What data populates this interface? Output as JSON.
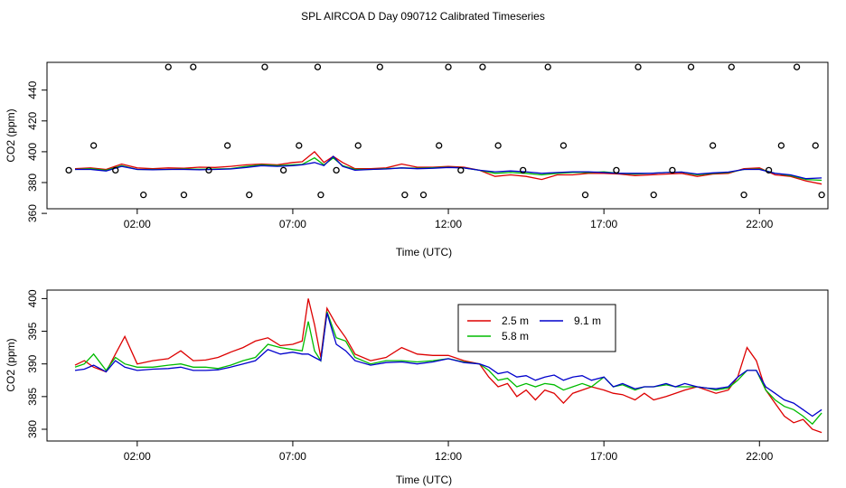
{
  "title": "SPL AIRCOA D  Day 090712  Calibrated Timeseries",
  "colors": {
    "s25": "#dd0000",
    "s58": "#00bb00",
    "s91": "#0000cc",
    "axis": "#000000"
  },
  "chart_data": [
    {
      "type": "line",
      "title": "SPL AIRCOA D  Day 090712  Calibrated Timeseries",
      "xlabel": "Time (UTC)",
      "ylabel": "CO2 (ppm)",
      "xlim": [
        -0.9,
        24.2
      ],
      "ylim": [
        363,
        458
      ],
      "x_tick_labels": [
        {
          "v": 2,
          "label": "02:00"
        },
        {
          "v": 7,
          "label": "07:00"
        },
        {
          "v": 12,
          "label": "12:00"
        },
        {
          "v": 17,
          "label": "17:00"
        },
        {
          "v": 22,
          "label": "22:00"
        }
      ],
      "y_tick_labels": [
        {
          "v": 360,
          "label": "360"
        },
        {
          "v": 380,
          "label": "380"
        },
        {
          "v": 400,
          "label": "400"
        },
        {
          "v": 420,
          "label": "420"
        },
        {
          "v": 440,
          "label": "440"
        }
      ],
      "series": [
        {
          "name": "2.5 m",
          "color": "#dd0000",
          "x": [
            0,
            0.5,
            1,
            1.5,
            2,
            2.5,
            3,
            3.5,
            4,
            4.5,
            5,
            5.5,
            6,
            6.5,
            7,
            7.3,
            7.7,
            8,
            8.3,
            8.6,
            9,
            9.5,
            10,
            10.5,
            11,
            11.5,
            12,
            12.5,
            13,
            13.5,
            14,
            14.5,
            15,
            15.5,
            16,
            16.5,
            17,
            17.5,
            18,
            18.5,
            19,
            19.5,
            20,
            20.5,
            21,
            21.5,
            22,
            22.5,
            23,
            23.5,
            24
          ],
          "values": [
            389,
            389.5,
            388.5,
            392,
            389.5,
            389,
            389.5,
            389.3,
            390,
            389.8,
            390.5,
            391.5,
            392,
            391.5,
            393,
            393.5,
            400,
            393,
            397,
            393,
            389,
            389,
            389.5,
            392,
            390,
            390,
            390.5,
            390,
            388,
            384,
            385,
            384,
            382,
            385,
            385,
            386,
            386,
            385.5,
            384.5,
            385,
            385.5,
            386,
            384,
            385.5,
            386,
            389,
            389.5,
            385,
            384,
            381,
            379
          ]
        },
        {
          "name": "5.8 m",
          "color": "#00bb00",
          "x": [
            0,
            0.5,
            1,
            1.5,
            2,
            2.5,
            3,
            3.5,
            4,
            4.5,
            5,
            5.5,
            6,
            6.5,
            7,
            7.3,
            7.7,
            8,
            8.3,
            8.6,
            9,
            9.5,
            10,
            10.5,
            11,
            11.5,
            12,
            12.5,
            13,
            13.5,
            14,
            14.5,
            15,
            15.5,
            16,
            16.5,
            17,
            17.5,
            18,
            18.5,
            19,
            19.5,
            20,
            20.5,
            21,
            21.5,
            22,
            22.5,
            23,
            23.5,
            24
          ],
          "values": [
            388.5,
            389,
            388,
            391,
            388.5,
            388.5,
            388.5,
            388.8,
            388.6,
            388.8,
            389,
            390.5,
            391.5,
            391,
            391.5,
            391.8,
            396,
            391.5,
            396,
            391,
            388.5,
            388.5,
            389,
            389.5,
            389.3,
            389.6,
            390,
            389.5,
            388,
            386,
            386.5,
            386,
            385,
            386,
            386.5,
            386.5,
            387,
            386,
            385.5,
            386,
            386.5,
            386.8,
            385,
            386,
            386.5,
            388.5,
            388.8,
            386,
            384.5,
            382,
            381.5
          ]
        },
        {
          "name": "9.1 m",
          "color": "#0000cc",
          "x": [
            0,
            0.5,
            1,
            1.5,
            2,
            2.5,
            3,
            3.5,
            4,
            4.5,
            5,
            5.5,
            6,
            6.5,
            7,
            7.3,
            7.7,
            8,
            8.3,
            8.6,
            9,
            9.5,
            10,
            10.5,
            11,
            11.5,
            12,
            12.5,
            13,
            13.5,
            14,
            14.5,
            15,
            15.5,
            16,
            16.5,
            17,
            17.5,
            18,
            18.5,
            19,
            19.5,
            20,
            20.5,
            21,
            21.5,
            22,
            22.5,
            23,
            23.5,
            24
          ],
          "values": [
            388.5,
            388.5,
            387.5,
            390.5,
            388.5,
            388.3,
            388.5,
            388.5,
            388.3,
            388.5,
            388.8,
            389.8,
            391,
            390.5,
            391,
            391.5,
            393,
            391,
            397,
            390.5,
            388,
            388.5,
            388.8,
            389.5,
            389,
            389.3,
            389.8,
            389.5,
            388,
            387,
            387.5,
            387,
            386,
            386.5,
            387,
            387,
            386.5,
            386,
            386,
            386,
            386.5,
            386.8,
            385.5,
            386.3,
            386.8,
            388.5,
            388.5,
            386,
            385,
            382.5,
            383
          ]
        }
      ],
      "flag_points": {
        "x": [
          -0.2,
          0.6,
          1.3,
          2.2,
          3,
          3.5,
          3.8,
          4.3,
          4.9,
          5.6,
          6.1,
          6.7,
          7.2,
          7.8,
          7.9,
          8.4,
          9.1,
          9.8,
          10.6,
          11.2,
          11.7,
          12,
          12.4,
          13.1,
          13.6,
          14.4,
          15.2,
          15.7,
          16.4,
          17.4,
          18.1,
          18.6,
          19.2,
          19.8,
          20.5,
          21.1,
          21.5,
          22.3,
          22.7,
          23.2,
          23.8,
          24
        ],
        "values": [
          388,
          404,
          388,
          372,
          455,
          372,
          455,
          388,
          404,
          372,
          455,
          388,
          404,
          455,
          372,
          388,
          404,
          455,
          372,
          372,
          404,
          455,
          388,
          455,
          404,
          388,
          455,
          404,
          372,
          388,
          455,
          372,
          388,
          455,
          404,
          455,
          372,
          388,
          404,
          455,
          404,
          372
        ]
      }
    },
    {
      "type": "line",
      "xlabel": "Time (UTC)",
      "ylabel": "CO2 (ppm)",
      "xlim": [
        -0.9,
        24.2
      ],
      "ylim": [
        378.2,
        401.3
      ],
      "x_tick_labels": [
        {
          "v": 2,
          "label": "02:00"
        },
        {
          "v": 7,
          "label": "07:00"
        },
        {
          "v": 12,
          "label": "12:00"
        },
        {
          "v": 17,
          "label": "17:00"
        },
        {
          "v": 22,
          "label": "22:00"
        }
      ],
      "y_tick_labels": [
        {
          "v": 380,
          "label": "380"
        },
        {
          "v": 385,
          "label": "385"
        },
        {
          "v": 390,
          "label": "390"
        },
        {
          "v": 395,
          "label": "395"
        },
        {
          "v": 400,
          "label": "400"
        }
      ],
      "legend": {
        "position": "top-center",
        "items": [
          {
            "name": "2.5 m",
            "color": "#dd0000"
          },
          {
            "name": "5.8 m",
            "color": "#00bb00"
          },
          {
            "name": "9.1 m",
            "color": "#0000cc"
          }
        ]
      },
      "series": [
        {
          "name": "2.5 m",
          "color": "#dd0000",
          "x": [
            0,
            0.3,
            0.6,
            1,
            1.3,
            1.6,
            2,
            2.5,
            3,
            3.4,
            3.8,
            4.2,
            4.6,
            5,
            5.4,
            5.8,
            6.2,
            6.6,
            7,
            7.3,
            7.5,
            7.7,
            7.9,
            8.1,
            8.4,
            8.7,
            9,
            9.5,
            10,
            10.5,
            11,
            11.5,
            12,
            12.5,
            13,
            13.3,
            13.6,
            13.9,
            14.2,
            14.5,
            14.8,
            15.1,
            15.4,
            15.7,
            16,
            16.3,
            16.6,
            17,
            17.3,
            17.6,
            18,
            18.3,
            18.6,
            19,
            19.3,
            19.6,
            20,
            20.3,
            20.6,
            21,
            21.3,
            21.6,
            21.9,
            22.2,
            22.5,
            22.8,
            23.1,
            23.4,
            23.7,
            24
          ],
          "values": [
            389.8,
            390.5,
            389.5,
            388.8,
            391.5,
            394.2,
            390,
            390.5,
            390.8,
            392,
            390.5,
            390.6,
            391,
            391.8,
            392.5,
            393.5,
            394,
            392.8,
            393,
            393.5,
            400,
            396,
            391,
            398.5,
            396,
            394,
            391.5,
            390.5,
            391,
            392.5,
            391.5,
            391.3,
            391.3,
            390.5,
            390,
            388,
            386.5,
            387,
            385,
            386,
            384.5,
            386,
            385.5,
            384,
            385.5,
            386,
            386.5,
            386,
            385.5,
            385.3,
            384.5,
            385.5,
            384.5,
            385,
            385.5,
            386,
            386.5,
            386,
            385.5,
            386,
            388,
            392.5,
            390.5,
            386,
            384,
            382,
            381,
            381.5,
            380,
            379.5
          ]
        },
        {
          "name": "5.8 m",
          "color": "#00bb00",
          "x": [
            0,
            0.3,
            0.6,
            1,
            1.3,
            1.6,
            2,
            2.5,
            3,
            3.4,
            3.8,
            4.2,
            4.6,
            5,
            5.4,
            5.8,
            6.2,
            6.6,
            7,
            7.3,
            7.5,
            7.7,
            7.9,
            8.1,
            8.4,
            8.7,
            9,
            9.5,
            10,
            10.5,
            11,
            11.5,
            12,
            12.5,
            13,
            13.3,
            13.6,
            13.9,
            14.2,
            14.5,
            14.8,
            15.1,
            15.4,
            15.7,
            16,
            16.3,
            16.6,
            17,
            17.3,
            17.6,
            18,
            18.3,
            18.6,
            19,
            19.3,
            19.6,
            20,
            20.3,
            20.6,
            21,
            21.3,
            21.6,
            21.9,
            22.2,
            22.5,
            22.8,
            23.1,
            23.4,
            23.7,
            24
          ],
          "values": [
            389.5,
            390,
            391.5,
            389,
            391,
            390,
            389.5,
            389.5,
            389.8,
            390,
            389.5,
            389.5,
            389.3,
            389.8,
            390.5,
            391,
            393,
            392.5,
            392.2,
            392,
            396.5,
            392,
            390.5,
            398,
            394,
            393.5,
            391,
            390,
            390.5,
            390.5,
            390.3,
            390.5,
            390.8,
            390.3,
            390,
            389,
            387.5,
            387.8,
            386.5,
            387,
            386.5,
            387,
            386.8,
            386,
            386.5,
            387,
            386.5,
            388,
            386.5,
            386.8,
            386,
            386.5,
            386.5,
            386.8,
            386.5,
            386.5,
            386.5,
            386.3,
            386,
            386.3,
            387.5,
            389,
            389,
            386,
            384.5,
            383.5,
            383,
            382,
            380.8,
            382.5
          ]
        },
        {
          "name": "9.1 m",
          "color": "#0000cc",
          "x": [
            0,
            0.3,
            0.6,
            1,
            1.3,
            1.6,
            2,
            2.5,
            3,
            3.4,
            3.8,
            4.2,
            4.6,
            5,
            5.4,
            5.8,
            6.2,
            6.6,
            7,
            7.3,
            7.5,
            7.7,
            7.9,
            8.1,
            8.4,
            8.7,
            9,
            9.5,
            10,
            10.5,
            11,
            11.5,
            12,
            12.5,
            13,
            13.3,
            13.6,
            13.9,
            14.2,
            14.5,
            14.8,
            15.1,
            15.4,
            15.7,
            16,
            16.3,
            16.6,
            17,
            17.3,
            17.6,
            18,
            18.3,
            18.6,
            19,
            19.3,
            19.6,
            20,
            20.3,
            20.6,
            21,
            21.3,
            21.6,
            21.9,
            22.2,
            22.5,
            22.8,
            23.1,
            23.4,
            23.7,
            24
          ],
          "values": [
            389,
            389.2,
            389.8,
            388.8,
            390.5,
            389.5,
            389,
            389.2,
            389.3,
            389.5,
            389,
            389,
            389.1,
            389.5,
            390,
            390.5,
            392.2,
            391.5,
            391.8,
            391.5,
            391.5,
            391,
            390.5,
            397.8,
            393,
            392,
            390.5,
            389.8,
            390.2,
            390.3,
            390,
            390.3,
            390.8,
            390.2,
            390,
            389.5,
            388.5,
            388.8,
            388,
            388.2,
            387.5,
            388,
            388.3,
            387.5,
            388,
            388.2,
            387.5,
            388,
            386.5,
            387,
            386.2,
            386.5,
            386.5,
            387,
            386.5,
            387,
            386.5,
            386.3,
            386.2,
            386.5,
            388,
            389,
            389,
            386.5,
            385.5,
            384.5,
            384,
            383,
            382,
            383
          ]
        }
      ]
    }
  ]
}
